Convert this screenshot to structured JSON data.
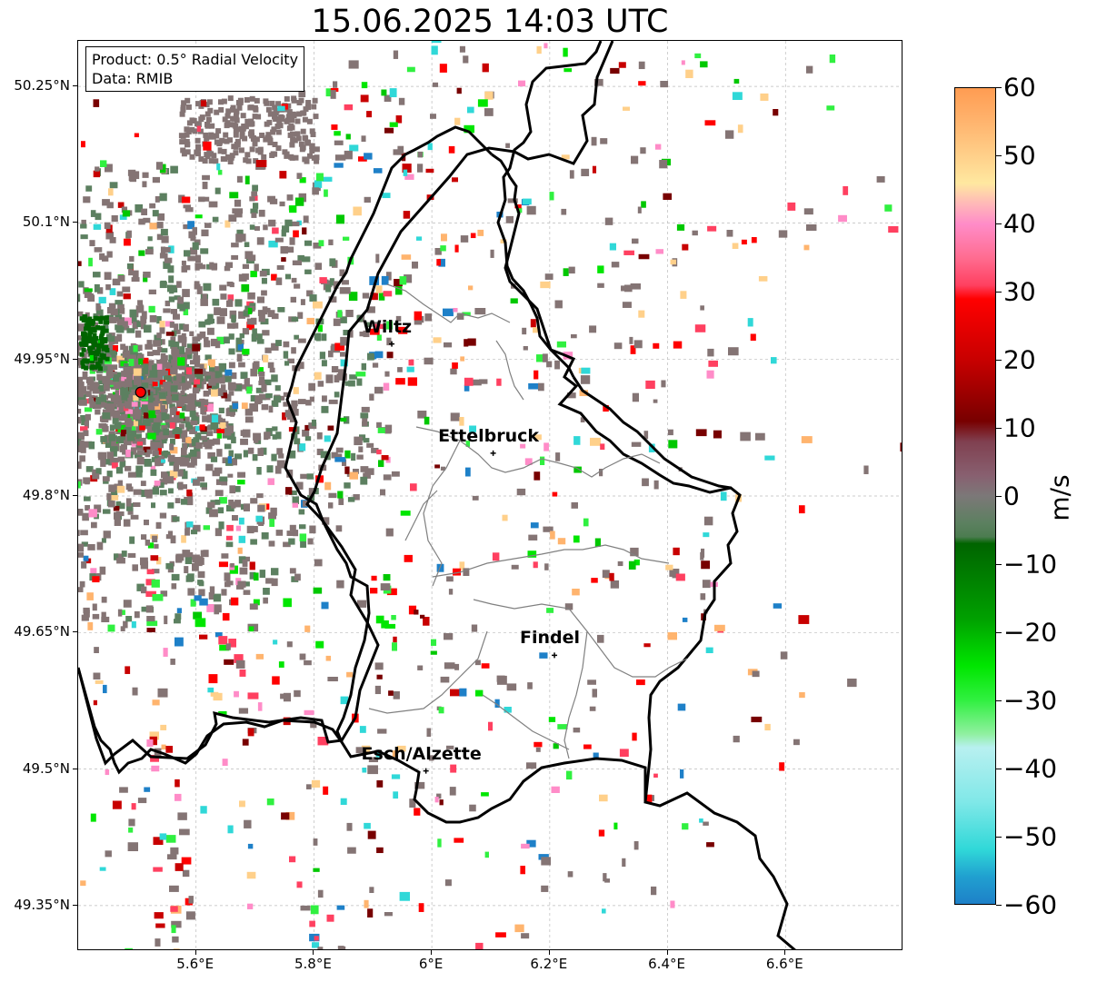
{
  "title": "15.06.2025 14:03 UTC",
  "info": {
    "product": "Product: 0.5° Radial Velocity",
    "data": "Data: RMIB"
  },
  "axes": {
    "lat_ticks": [
      {
        "value": 50.25,
        "label": "50.25°N"
      },
      {
        "value": 50.1,
        "label": "50.1°N"
      },
      {
        "value": 49.95,
        "label": "49.95°N"
      },
      {
        "value": 49.8,
        "label": "49.8°N"
      },
      {
        "value": 49.65,
        "label": "49.65°N"
      },
      {
        "value": 49.5,
        "label": "49.5°N"
      },
      {
        "value": 49.35,
        "label": "49.35°N"
      }
    ],
    "lon_ticks": [
      {
        "value": 5.6,
        "label": "5.6°E"
      },
      {
        "value": 5.8,
        "label": "5.8°E"
      },
      {
        "value": 6.0,
        "label": "6°E"
      },
      {
        "value": 6.2,
        "label": "6.2°E"
      },
      {
        "value": 6.4,
        "label": "6.4°E"
      },
      {
        "value": 6.6,
        "label": "6.6°E"
      }
    ],
    "lon_range": [
      5.4,
      6.8
    ],
    "lat_range": [
      49.3,
      50.3
    ],
    "grid": true
  },
  "radar_site": {
    "lon": 5.506,
    "lat": 49.914,
    "color": "#ff0000"
  },
  "cities": [
    {
      "name": "Wiltz",
      "lon": 5.932,
      "lat": 49.967
    },
    {
      "name": "Ettelbruck",
      "lon": 6.104,
      "lat": 49.847
    },
    {
      "name": "Findel",
      "lon": 6.208,
      "lat": 49.625
    },
    {
      "name": "Esch/Alzette",
      "lon": 5.99,
      "lat": 49.498
    }
  ],
  "colorbar": {
    "label": "m/s",
    "min": -60,
    "max": 60,
    "ticks": [
      {
        "value": 60,
        "label": "60"
      },
      {
        "value": 50,
        "label": "50"
      },
      {
        "value": 40,
        "label": "40"
      },
      {
        "value": 30,
        "label": "30"
      },
      {
        "value": 20,
        "label": "20"
      },
      {
        "value": 10,
        "label": "10"
      },
      {
        "value": 0,
        "label": "0"
      },
      {
        "value": -10,
        "label": "−10"
      },
      {
        "value": -20,
        "label": "−20"
      },
      {
        "value": -30,
        "label": "−30"
      },
      {
        "value": -40,
        "label": "−40"
      },
      {
        "value": -50,
        "label": "−50"
      },
      {
        "value": -60,
        "label": "−60"
      }
    ],
    "stops": [
      {
        "value": 60,
        "color": "#ff9c52"
      },
      {
        "value": 55,
        "color": "#ffb46e"
      },
      {
        "value": 50,
        "color": "#ffd08a"
      },
      {
        "value": 46,
        "color": "#ffe8a0"
      },
      {
        "value": 43,
        "color": "#ffb8b8"
      },
      {
        "value": 40,
        "color": "#ff8cc8"
      },
      {
        "value": 35,
        "color": "#ff6c90"
      },
      {
        "value": 31,
        "color": "#ff4060"
      },
      {
        "value": 29,
        "color": "#ff0000"
      },
      {
        "value": 20,
        "color": "#c80000"
      },
      {
        "value": 11,
        "color": "#780000"
      },
      {
        "value": 8,
        "color": "#804050"
      },
      {
        "value": 3,
        "color": "#886070"
      },
      {
        "value": 0,
        "color": "#7c7878"
      },
      {
        "value": -4,
        "color": "#5c8060"
      },
      {
        "value": -6,
        "color": "#4c7c50"
      },
      {
        "value": -7,
        "color": "#006400"
      },
      {
        "value": -18,
        "color": "#00a000"
      },
      {
        "value": -25,
        "color": "#00e600"
      },
      {
        "value": -30,
        "color": "#30f040"
      },
      {
        "value": -35,
        "color": "#90f0a0"
      },
      {
        "value": -37,
        "color": "#b8f0f0"
      },
      {
        "value": -45,
        "color": "#80e8e8"
      },
      {
        "value": -52,
        "color": "#30d8d8"
      },
      {
        "value": -56,
        "color": "#20a0d0"
      },
      {
        "value": -60,
        "color": "#1e80c8"
      }
    ]
  },
  "palette": {
    "clutter_grey": "#847474",
    "clutter_green": "#5c8060",
    "border_color": "#000000",
    "canton_color": "#808080"
  }
}
